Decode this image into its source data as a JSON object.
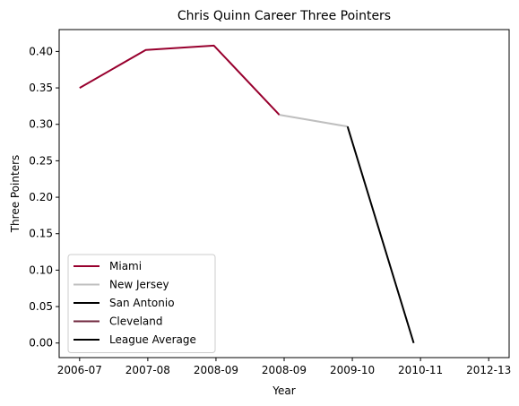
{
  "chart_data": {
    "type": "line",
    "title": "Chris Quinn Career Three Pointers",
    "xlabel": "Year",
    "ylabel": "Three Pointers",
    "ylim": [
      -0.02,
      0.43
    ],
    "yticks": [
      0.0,
      0.05,
      0.1,
      0.15,
      0.2,
      0.25,
      0.3,
      0.35,
      0.4
    ],
    "ytick_labels": [
      "0.00",
      "0.05",
      "0.10",
      "0.15",
      "0.20",
      "0.25",
      "0.30",
      "0.35",
      "0.40"
    ],
    "categories": [
      "2006-07",
      "2007-08",
      "2008-09",
      "2008-09",
      "2009-10",
      "2010-11",
      "2012-13"
    ],
    "tick_positions": [
      0,
      1,
      2,
      3,
      4,
      5,
      6
    ],
    "xlim": [
      -0.3,
      6.3
    ],
    "series": [
      {
        "name": "Miami",
        "color": "#98002E",
        "x": [
          0,
          0.97,
          1.97,
          2.93
        ],
        "y": [
          0.35,
          0.402,
          0.408,
          0.313
        ]
      },
      {
        "name": "New Jersey",
        "color": "#BFBFBF",
        "x": [
          2.93,
          3.93
        ],
        "y": [
          0.313,
          0.297
        ]
      },
      {
        "name": "San Antonio",
        "color": "#000000",
        "x": [
          3.93,
          4.9
        ],
        "y": [
          0.297,
          0.0
        ]
      },
      {
        "name": "Cleveland",
        "color": "#6F263D",
        "x": [],
        "y": []
      },
      {
        "name": "League Average",
        "color": "#000000",
        "x": [],
        "y": []
      }
    ],
    "legend_position": "lower-left",
    "grid": false
  }
}
